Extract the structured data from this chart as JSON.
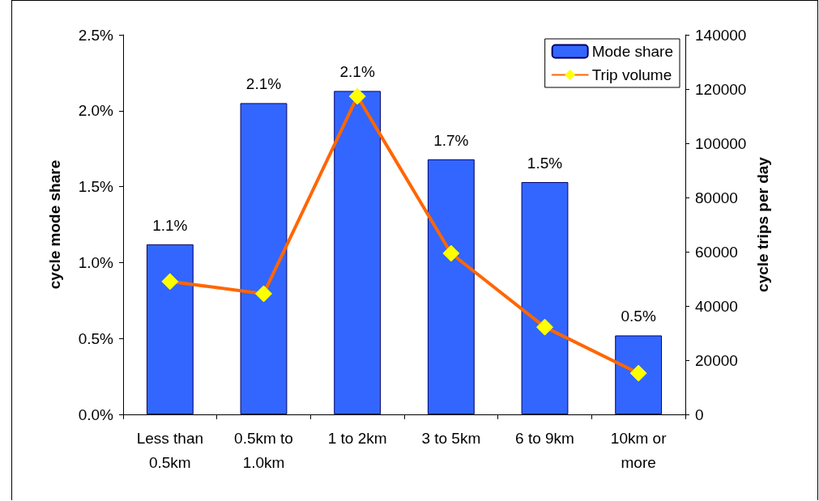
{
  "chart_data": {
    "type": "bar",
    "categories": [
      "Less than\n0.5km",
      "0.5km to\n1.0km",
      "1 to 2km",
      "3 to 5km",
      "6 to 9km",
      "10km or\nmore"
    ],
    "ylabel": "cycle mode share",
    "y2label": "cycle trips per day",
    "series": [
      {
        "name": "Mode share",
        "color": "#3366ff",
        "values": [
          1.12,
          2.05,
          2.13,
          1.68,
          1.53,
          0.52
        ],
        "value_labels": [
          "1.1%",
          "2.1%",
          "2.1%",
          "1.7%",
          "1.5%",
          "0.5%"
        ]
      },
      {
        "name": "Trip volume",
        "type": "line",
        "axis": "y2",
        "color": "#ff6600",
        "marker": "diamond",
        "values": [
          49000,
          44500,
          117300,
          59400,
          32200,
          15200
        ]
      }
    ],
    "ylim": [
      0,
      2.5
    ],
    "yticks": [
      {
        "value": 0,
        "label": "0.0%"
      },
      {
        "value": 0.5,
        "label": "0.5%"
      },
      {
        "value": 1,
        "label": "1.0%"
      },
      {
        "value": 1.5,
        "label": "1.5%"
      },
      {
        "value": 2,
        "label": "2.0%"
      },
      {
        "value": 2.5,
        "label": "2.5%"
      }
    ],
    "y2lim": [
      0,
      140000
    ],
    "y2ticks": [
      0,
      20000,
      40000,
      60000,
      80000,
      100000,
      120000,
      140000
    ],
    "grid": false,
    "legend": "top right"
  }
}
